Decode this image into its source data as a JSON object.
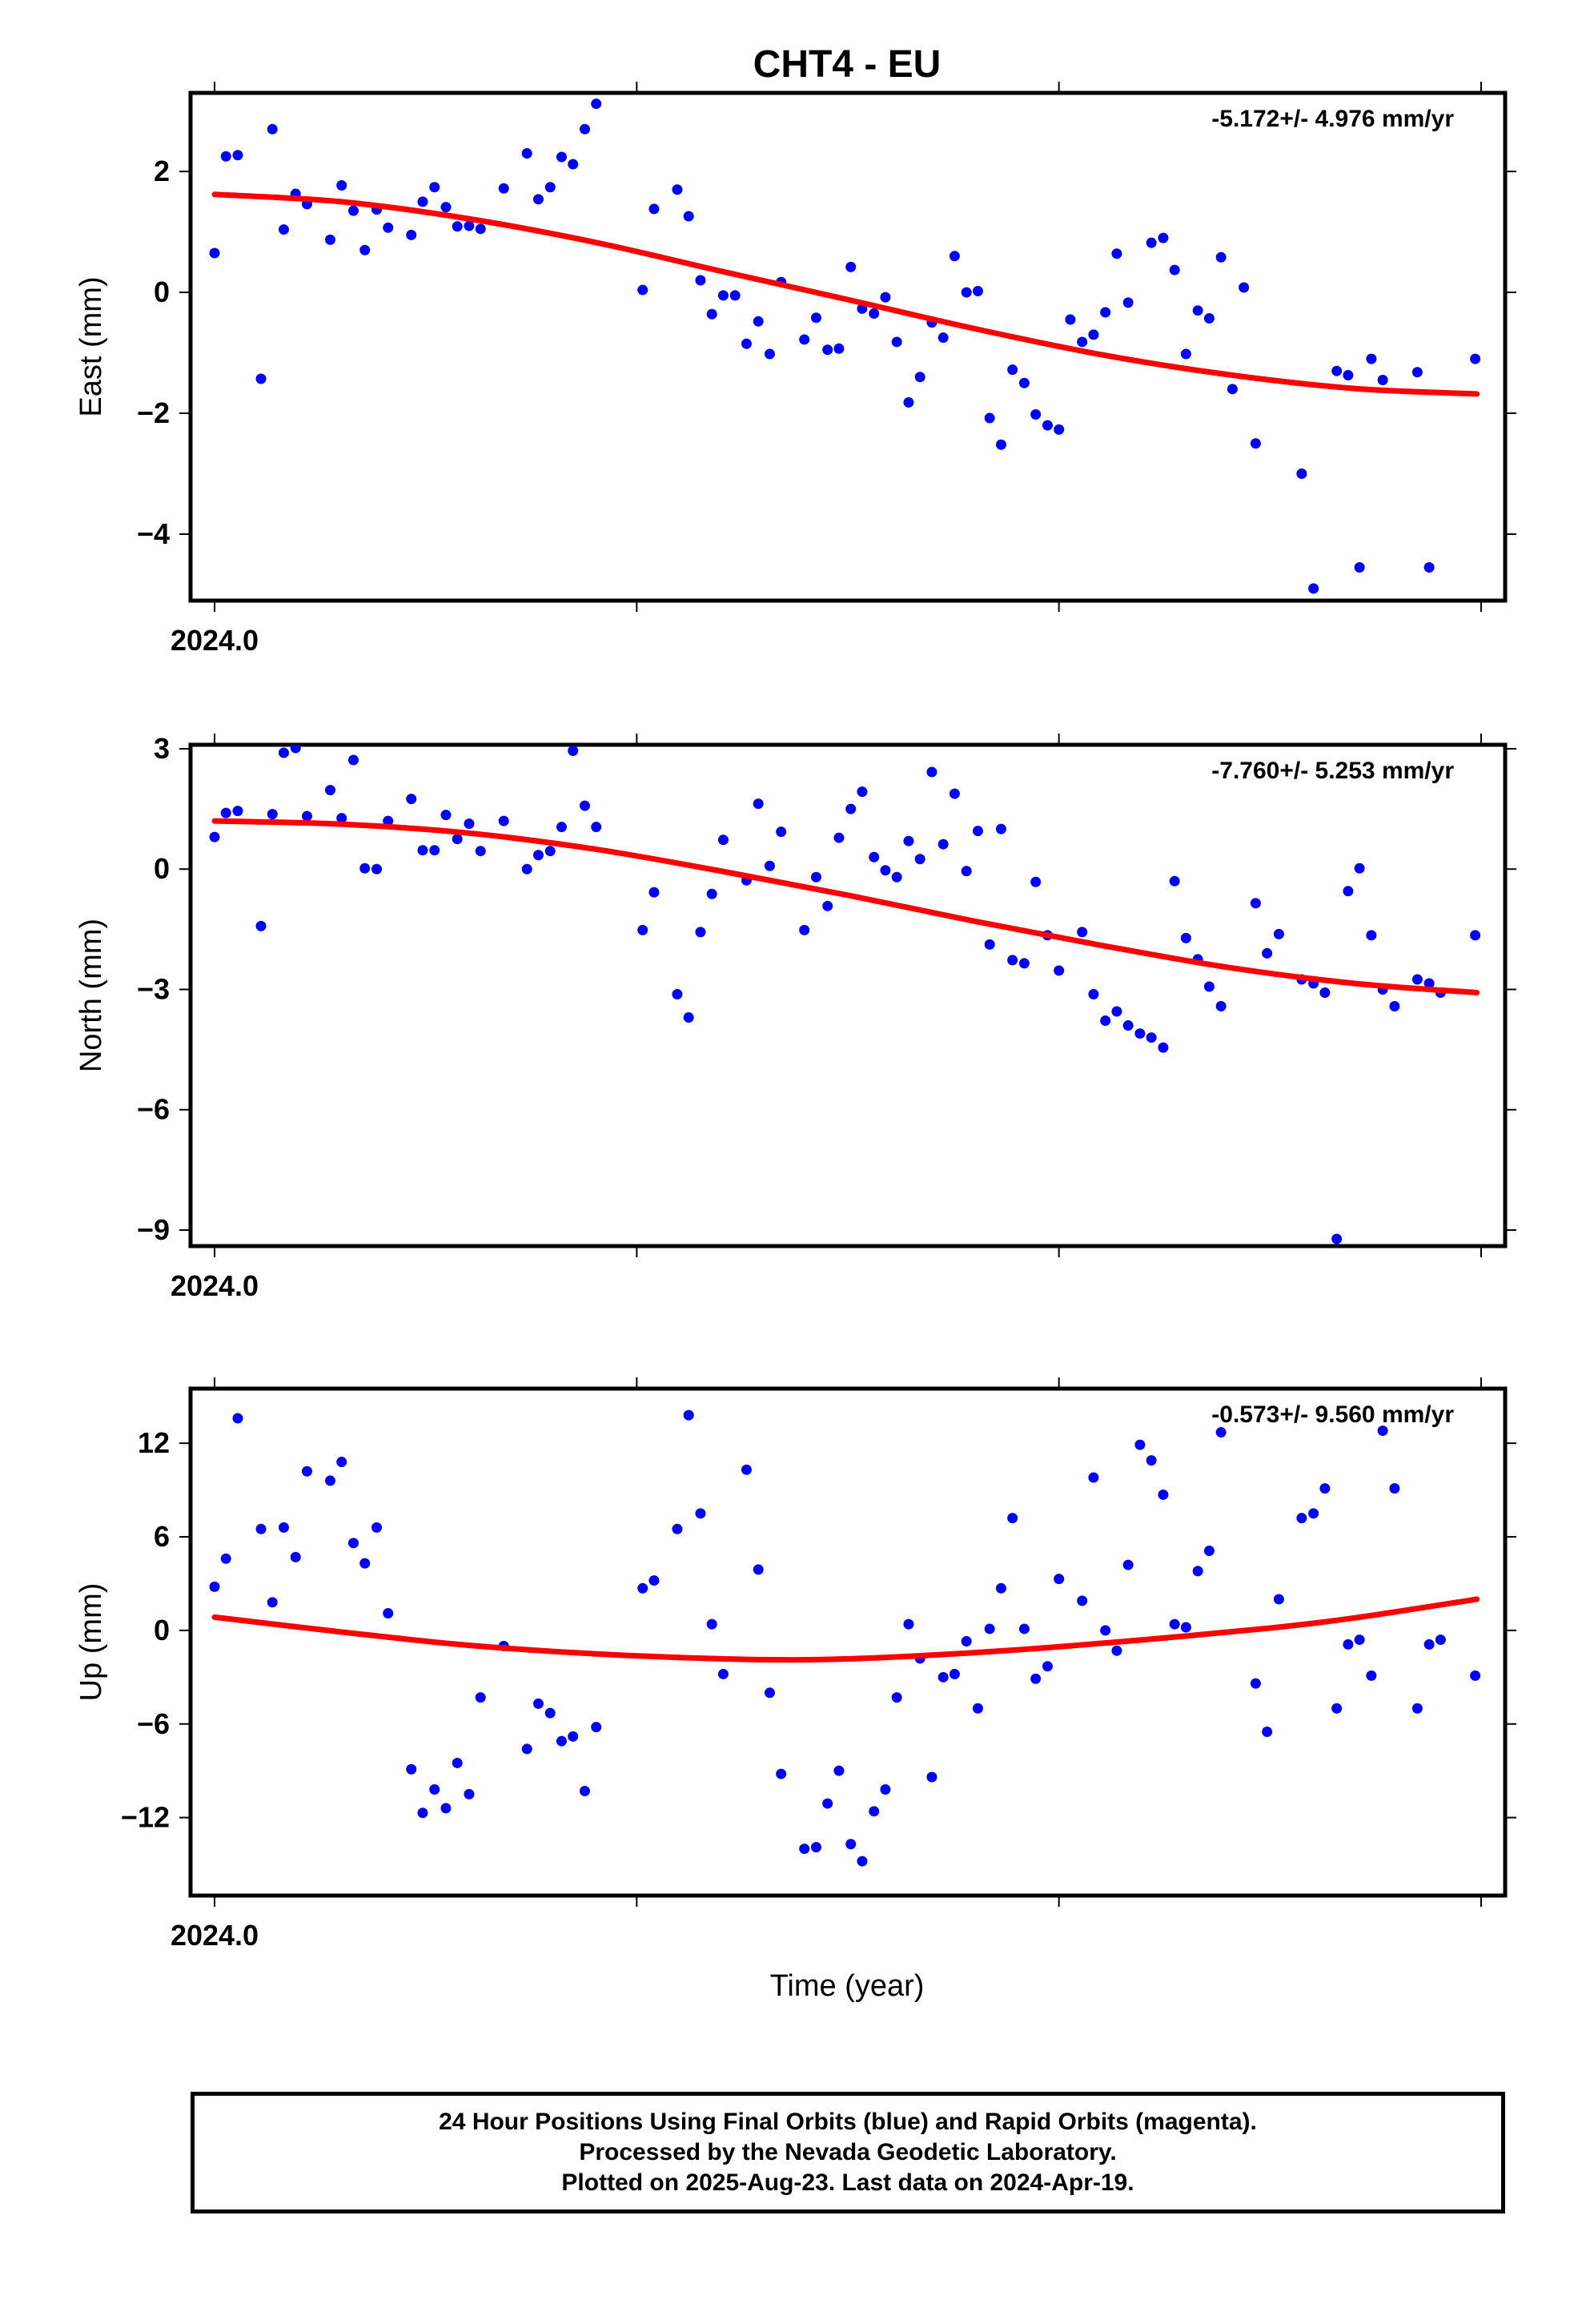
{
  "colors": {
    "points": "#0000ff",
    "fit_line": "#ff0000",
    "frame": "#000000"
  },
  "title": "CHT4 - EU",
  "footer": {
    "line1": "24 Hour Positions Using Final Orbits (blue) and Rapid Orbits (magenta).",
    "line2": "Processed by the Nevada Geodetic Laboratory.",
    "line3": "Plotted on 2025-Aug-23. Last data on 2024-Apr-19."
  },
  "chart_data": [
    {
      "type": "scatter",
      "title": "CHT4 - EU",
      "ylabel": "East (mm)",
      "xlabel": "",
      "rate_label": "-5.172+/- 4.976 mm/yr",
      "xlim": [
        2024.0,
        2024.3
      ],
      "ylim": [
        -5.1,
        3.3
      ],
      "x_ticks": [
        2024.0,
        2024.1,
        2024.2,
        2024.3
      ],
      "x_tick_labels": [
        "2024.0"
      ],
      "y_ticks": [
        2,
        0,
        -2,
        -4
      ],
      "y_tick_labels": [
        "2",
        "0",
        "−2",
        "−4"
      ],
      "grid": false,
      "fit_curve": [
        [
          2024.0,
          1.62
        ],
        [
          2024.03,
          1.5
        ],
        [
          2024.06,
          1.22
        ],
        [
          2024.09,
          0.83
        ],
        [
          2024.12,
          0.35
        ],
        [
          2024.15,
          -0.12
        ],
        [
          2024.18,
          -0.6
        ],
        [
          2024.21,
          -1.03
        ],
        [
          2024.24,
          -1.36
        ],
        [
          2024.27,
          -1.59
        ],
        [
          2024.299,
          -1.68
        ]
      ],
      "series": [
        {
          "x": [
            2024.0,
            2024.0027,
            2024.0055,
            2024.011,
            2024.0137,
            2024.0164,
            2024.0192,
            2024.0219,
            2024.0274,
            2024.0301,
            2024.0329,
            2024.0356,
            2024.0384,
            2024.0411,
            2024.0466,
            2024.0493,
            2024.0521,
            2024.0548,
            2024.0575,
            2024.0603,
            2024.063,
            2024.0685,
            2024.074,
            2024.0767,
            2024.0795,
            2024.0822,
            2024.0849,
            2024.0877,
            2024.0904,
            2024.1014,
            2024.1041,
            2024.1096,
            2024.1123,
            2024.1151,
            2024.1178,
            2024.1205,
            2024.1233,
            2024.126,
            2024.1288,
            2024.1315,
            2024.1342,
            2024.1397,
            2024.1425,
            2024.1452,
            2024.1479,
            2024.1507,
            2024.1534,
            2024.1562,
            2024.1589,
            2024.1616,
            2024.1644,
            2024.1671,
            2024.1699,
            2024.1726,
            2024.1753,
            2024.1781,
            2024.1808,
            2024.1836,
            2024.1863,
            2024.189,
            2024.1918,
            2024.1945,
            2024.1973,
            2024.2,
            2024.2027,
            2024.2055,
            2024.2082,
            2024.211,
            2024.2137,
            2024.2164,
            2024.2219,
            2024.2247,
            2024.2274,
            2024.2301,
            2024.2329,
            2024.2356,
            2024.2384,
            2024.2411,
            2024.2438,
            2024.2466,
            2024.2575,
            2024.2603,
            2024.2658,
            2024.2685,
            2024.2712,
            2024.274,
            2024.2767,
            2024.2849,
            2024.2877,
            2024.2986
          ],
          "y": [
            0.65,
            2.25,
            2.27,
            -1.43,
            2.7,
            1.04,
            1.63,
            1.46,
            0.87,
            1.77,
            1.35,
            0.7,
            1.37,
            1.07,
            0.95,
            1.5,
            1.74,
            1.41,
            1.09,
            1.1,
            1.05,
            1.72,
            2.3,
            1.54,
            1.74,
            2.24,
            2.12,
            2.7,
            3.12,
            0.04,
            1.38,
            1.7,
            1.26,
            0.2,
            -0.36,
            -0.05,
            -0.05,
            -0.85,
            -0.48,
            -1.02,
            0.17,
            -0.78,
            -0.42,
            -0.95,
            -0.93,
            0.42,
            -0.27,
            -0.35,
            -0.08,
            -0.82,
            -1.82,
            -1.4,
            -0.5,
            -0.75,
            0.6,
            0.0,
            0.02,
            -2.08,
            -2.52,
            -1.28,
            -1.5,
            -2.02,
            -2.2,
            -2.27,
            -0.45,
            -0.82,
            -0.7,
            -0.33,
            0.64,
            -0.17,
            0.82,
            0.9,
            0.37,
            -1.02,
            -0.3,
            -0.43,
            0.58,
            -1.6,
            0.08,
            -2.5,
            -3.0,
            -4.9,
            -1.3,
            -1.37,
            -4.55,
            -1.1,
            -1.45,
            -1.32,
            -4.55,
            -1.1
          ]
        }
      ]
    },
    {
      "type": "scatter",
      "ylabel": "North (mm)",
      "xlabel": "",
      "rate_label": "-7.760+/- 5.253 mm/yr",
      "xlim": [
        2024.0,
        2024.3
      ],
      "ylim": [
        -9.4,
        3.1
      ],
      "x_ticks": [
        2024.0,
        2024.1,
        2024.2,
        2024.3
      ],
      "x_tick_labels": [
        "2024.0"
      ],
      "y_ticks": [
        3,
        0,
        -3,
        -6,
        -9
      ],
      "y_tick_labels": [
        "3",
        "0",
        "−3",
        "−6",
        "−9"
      ],
      "grid": false,
      "fit_curve": [
        [
          2024.0,
          1.2
        ],
        [
          2024.03,
          1.12
        ],
        [
          2024.06,
          0.9
        ],
        [
          2024.09,
          0.5
        ],
        [
          2024.12,
          -0.05
        ],
        [
          2024.15,
          -0.65
        ],
        [
          2024.18,
          -1.3
        ],
        [
          2024.21,
          -1.9
        ],
        [
          2024.24,
          -2.45
        ],
        [
          2024.27,
          -2.85
        ],
        [
          2024.299,
          -3.08
        ]
      ],
      "series": [
        {
          "x": [
            2024.0,
            2024.0027,
            2024.0055,
            2024.011,
            2024.0137,
            2024.0164,
            2024.0192,
            2024.0219,
            2024.0274,
            2024.0301,
            2024.0329,
            2024.0356,
            2024.0384,
            2024.0411,
            2024.0466,
            2024.0493,
            2024.0521,
            2024.0548,
            2024.0575,
            2024.0603,
            2024.063,
            2024.0685,
            2024.074,
            2024.0767,
            2024.0795,
            2024.0822,
            2024.0849,
            2024.0877,
            2024.0904,
            2024.1014,
            2024.1041,
            2024.1096,
            2024.1123,
            2024.1151,
            2024.1178,
            2024.1205,
            2024.126,
            2024.1288,
            2024.1315,
            2024.1342,
            2024.1397,
            2024.1425,
            2024.1452,
            2024.1479,
            2024.1507,
            2024.1534,
            2024.1562,
            2024.1589,
            2024.1616,
            2024.1644,
            2024.1671,
            2024.1699,
            2024.1726,
            2024.1753,
            2024.1781,
            2024.1808,
            2024.1836,
            2024.1863,
            2024.189,
            2024.1918,
            2024.1945,
            2024.1973,
            2024.2,
            2024.2055,
            2024.2082,
            2024.211,
            2024.2137,
            2024.2164,
            2024.2192,
            2024.2219,
            2024.2247,
            2024.2274,
            2024.2301,
            2024.2329,
            2024.2356,
            2024.2384,
            2024.2466,
            2024.2493,
            2024.2521,
            2024.2575,
            2024.2603,
            2024.263,
            2024.2658,
            2024.2685,
            2024.2712,
            2024.274,
            2024.2767,
            2024.2795,
            2024.2849,
            2024.2877,
            2024.2904,
            2024.2986
          ],
          "y": [
            0.8,
            1.4,
            1.45,
            -1.42,
            1.37,
            2.9,
            3.02,
            1.32,
            1.97,
            1.27,
            2.72,
            0.02,
            0.0,
            1.2,
            1.75,
            0.47,
            0.47,
            1.35,
            0.75,
            1.13,
            0.45,
            1.2,
            0.0,
            0.35,
            0.45,
            1.05,
            2.95,
            1.58,
            1.05,
            -1.52,
            -0.58,
            -3.12,
            -3.7,
            -1.57,
            -0.62,
            0.73,
            -0.28,
            1.63,
            0.08,
            0.93,
            -1.52,
            -0.2,
            -0.92,
            0.78,
            1.5,
            1.93,
            0.3,
            -0.03,
            -0.2,
            0.7,
            0.25,
            2.42,
            0.62,
            1.88,
            -0.05,
            0.95,
            -1.88,
            1.0,
            -2.27,
            -2.35,
            -0.32,
            -1.65,
            -2.53,
            -1.57,
            -3.12,
            -3.78,
            -3.55,
            -3.9,
            -4.1,
            -4.2,
            -4.45,
            -0.3,
            -1.72,
            -2.25,
            -2.93,
            -3.42,
            -0.85,
            -2.1,
            -1.62,
            -2.75,
            -2.85,
            -3.08,
            -9.22,
            -0.55,
            0.02,
            -1.65,
            -3.0,
            -3.42,
            -2.75,
            -2.85,
            -3.08,
            -1.65
          ]
        }
      ]
    },
    {
      "type": "scatter",
      "ylabel": "Up (mm)",
      "xlabel": "Time (year)",
      "rate_label": "-0.573+/- 9.560 mm/yr",
      "xlim": [
        2024.0,
        2024.3
      ],
      "ylim": [
        -17,
        15.5
      ],
      "x_ticks": [
        2024.0,
        2024.1,
        2024.2,
        2024.3
      ],
      "x_tick_labels": [
        "2024.0"
      ],
      "y_ticks": [
        12,
        6,
        0,
        -6,
        -12
      ],
      "y_tick_labels": [
        "12",
        "6",
        "0",
        "−6",
        "−12"
      ],
      "grid": false,
      "fit_curve": [
        [
          2024.0,
          0.85
        ],
        [
          2024.03,
          -0.1
        ],
        [
          2024.06,
          -0.95
        ],
        [
          2024.09,
          -1.5
        ],
        [
          2024.12,
          -1.82
        ],
        [
          2024.14,
          -1.88
        ],
        [
          2024.16,
          -1.72
        ],
        [
          2024.19,
          -1.25
        ],
        [
          2024.22,
          -0.6
        ],
        [
          2024.25,
          0.15
        ],
        [
          2024.27,
          0.8
        ],
        [
          2024.299,
          2.0
        ]
      ],
      "series": [
        {
          "x": [
            2024.0,
            2024.0027,
            2024.0055,
            2024.011,
            2024.0137,
            2024.0164,
            2024.0192,
            2024.0219,
            2024.0274,
            2024.0301,
            2024.0329,
            2024.0356,
            2024.0384,
            2024.0411,
            2024.0466,
            2024.0493,
            2024.0521,
            2024.0548,
            2024.0575,
            2024.0603,
            2024.063,
            2024.0685,
            2024.074,
            2024.0767,
            2024.0795,
            2024.0822,
            2024.0849,
            2024.0877,
            2024.0904,
            2024.1014,
            2024.1041,
            2024.1096,
            2024.1123,
            2024.1151,
            2024.1178,
            2024.1205,
            2024.126,
            2024.1288,
            2024.1315,
            2024.1342,
            2024.1397,
            2024.1425,
            2024.1452,
            2024.1479,
            2024.1507,
            2024.1534,
            2024.1562,
            2024.1589,
            2024.1616,
            2024.1644,
            2024.1671,
            2024.1699,
            2024.1726,
            2024.1753,
            2024.1781,
            2024.1808,
            2024.1836,
            2024.1863,
            2024.189,
            2024.1918,
            2024.1945,
            2024.1973,
            2024.2,
            2024.2055,
            2024.2082,
            2024.211,
            2024.2137,
            2024.2164,
            2024.2192,
            2024.2219,
            2024.2247,
            2024.2274,
            2024.2301,
            2024.2329,
            2024.2356,
            2024.2384,
            2024.2466,
            2024.2493,
            2024.2521,
            2024.2575,
            2024.2603,
            2024.263,
            2024.2658,
            2024.2685,
            2024.2712,
            2024.274,
            2024.2767,
            2024.2795,
            2024.2849,
            2024.2877,
            2024.2904,
            2024.2986
          ],
          "y": [
            2.8,
            4.6,
            13.6,
            6.5,
            1.8,
            6.6,
            4.7,
            10.2,
            9.6,
            10.8,
            5.6,
            4.3,
            6.6,
            1.1,
            -8.9,
            -11.7,
            -10.2,
            -11.4,
            -8.5,
            -10.5,
            -4.3,
            -1.0,
            -7.6,
            -4.7,
            -5.3,
            -7.1,
            -6.8,
            -10.3,
            -6.2,
            2.7,
            3.2,
            6.5,
            13.8,
            7.5,
            0.4,
            -2.8,
            10.3,
            3.9,
            -4.0,
            -9.2,
            -14.0,
            -13.9,
            -11.1,
            -9.0,
            -13.7,
            -14.8,
            -11.6,
            -10.2,
            -4.3,
            0.4,
            -1.8,
            -9.4,
            -3.0,
            -2.8,
            -0.7,
            -5.0,
            0.1,
            2.7,
            7.2,
            0.1,
            -3.1,
            -2.3,
            3.3,
            1.9,
            9.8,
            0.0,
            -1.3,
            4.2,
            11.9,
            10.9,
            8.7,
            0.4,
            0.2,
            3.8,
            5.1,
            12.7,
            -3.4,
            -6.5,
            2.0,
            7.2,
            7.5,
            9.1,
            -5.0,
            -0.9,
            -0.6,
            -2.9,
            12.8,
            9.1,
            -5.0,
            -0.9,
            -0.6,
            -2.9
          ]
        }
      ]
    }
  ]
}
